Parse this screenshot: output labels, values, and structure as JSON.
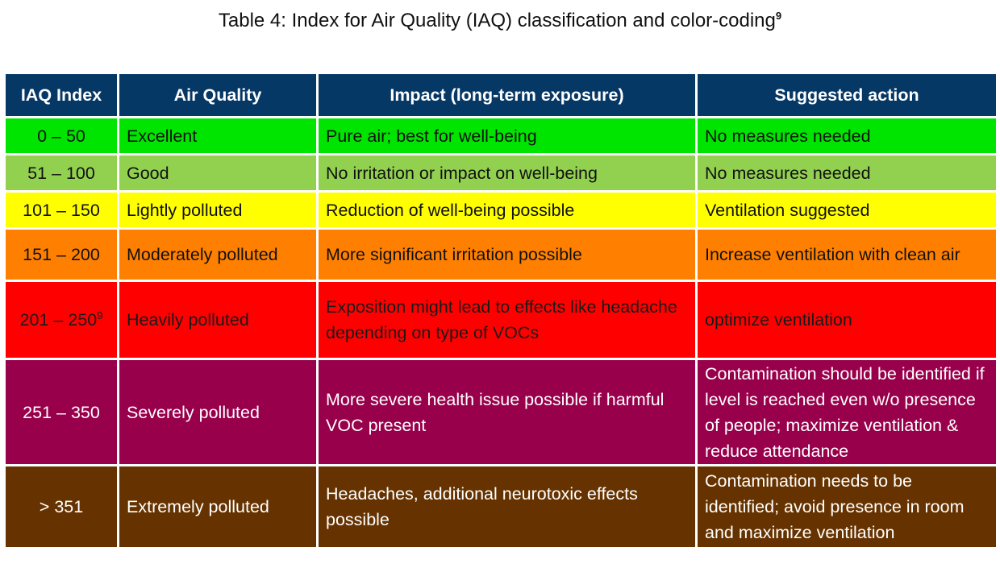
{
  "title": {
    "text": "Table 4: Index for Air Quality (IAQ) classification and color-coding",
    "footnote": "9"
  },
  "headers": [
    "IAQ Index",
    "Air Quality",
    "Impact (long-term exposure)",
    "Suggested action"
  ],
  "rows": [
    {
      "index": "0 – 50",
      "index_note": "",
      "quality": "Excellent",
      "impact": "Pure air; best for well-being",
      "action": "No measures needed",
      "bg": "#00e500",
      "fg": "#111111"
    },
    {
      "index": "51 – 100",
      "index_note": "",
      "quality": "Good",
      "impact": "No irritation or impact on well-being",
      "action": "No measures needed",
      "bg": "#92d050",
      "fg": "#111111"
    },
    {
      "index": "101 – 150",
      "index_note": "",
      "quality": "Lightly polluted",
      "impact": "Reduction of well-being possible",
      "action": "Ventilation suggested",
      "bg": "#ffff00",
      "fg": "#111111"
    },
    {
      "index": "151 – 200",
      "index_note": "",
      "quality": "Moderately polluted",
      "impact": "More significant irritation possible",
      "action": "Increase ventilation with clean air",
      "bg": "#ff8000",
      "fg": "#111111"
    },
    {
      "index": "201 – 250",
      "index_note": "9",
      "quality": "Heavily polluted",
      "impact": "Exposition might lead to effects like headache depending on type of VOCs",
      "action": "optimize ventilation",
      "bg": "#ff0000",
      "fg": "#1a1a1a"
    },
    {
      "index": "251 – 350",
      "index_note": "",
      "quality": "Severely polluted",
      "impact": "More severe health issue possible if harmful VOC present",
      "action": "Contamination should be identified if level is reached even w/o presence of people; maximize ventilation & reduce attendance",
      "bg": "#99004c",
      "fg": "#ffffff"
    },
    {
      "index": "> 351",
      "index_note": "",
      "quality": "Extremely polluted",
      "impact": "Headaches, additional neurotoxic effects possible",
      "action": "Contamination needs to be identified; avoid presence in room and maximize ventilation",
      "bg": "#663300",
      "fg": "#ffffff"
    }
  ]
}
